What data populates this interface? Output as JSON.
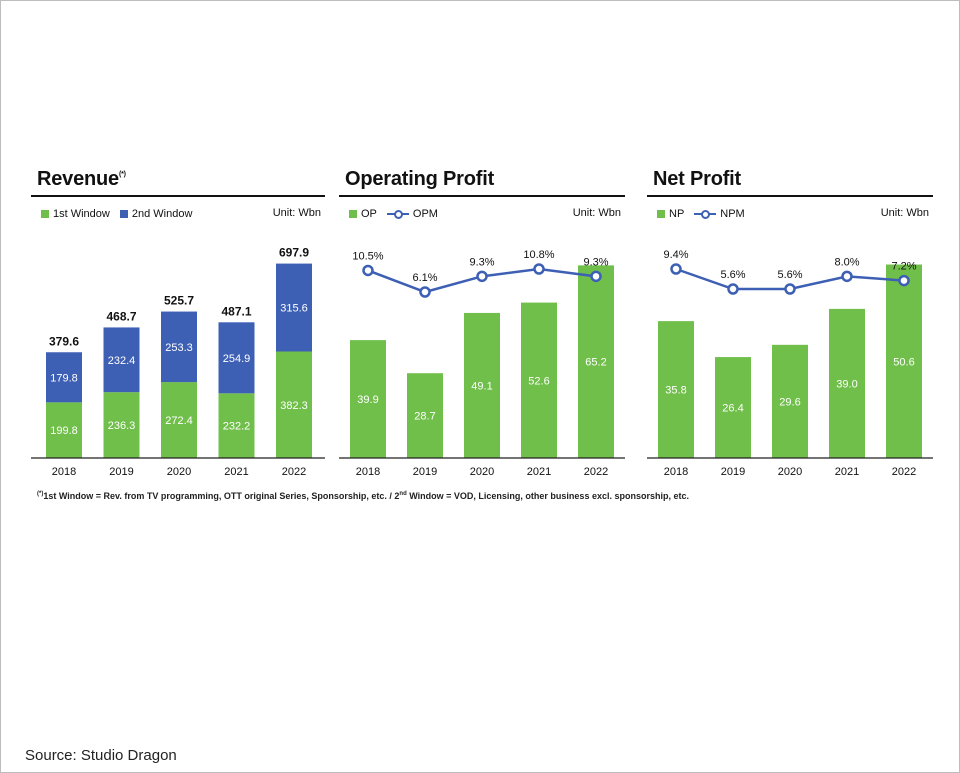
{
  "colors": {
    "green": "#71bf4b",
    "blue": "#3d5fb4",
    "axis": "#222222"
  },
  "footnote": {
    "mark": "(*)",
    "part1": "1st Window = Rev. from TV programming, OTT original Series, Sponsorship, etc. /  2",
    "sup": "nd",
    "part2": " Window = VOD, Licensing, other business excl. sponsorship, etc."
  },
  "source": "Source: Studio Dragon",
  "chart_data": [
    {
      "type": "bar",
      "stacked": true,
      "title": "Revenue",
      "title_mark": "(*)",
      "unit": "Unit: Wbn",
      "categories": [
        "2018",
        "2019",
        "2020",
        "2021",
        "2022"
      ],
      "series": [
        {
          "name": "1st Window",
          "values": [
            199.8,
            236.3,
            272.4,
            232.2,
            382.3
          ]
        },
        {
          "name": "2nd Window",
          "values": [
            179.8,
            232.4,
            253.3,
            254.9,
            315.6
          ]
        }
      ],
      "totals": [
        379.6,
        468.7,
        525.7,
        487.1,
        697.9
      ],
      "ylim": [
        0,
        700
      ]
    },
    {
      "type": "bar+line",
      "title": "Operating Profit",
      "unit": "Unit: Wbn",
      "categories": [
        "2018",
        "2019",
        "2020",
        "2021",
        "2022"
      ],
      "bar_series": {
        "name": "OP",
        "values": [
          39.9,
          28.7,
          49.1,
          52.6,
          65.2
        ]
      },
      "line_series": {
        "name": "OPM",
        "values": [
          10.5,
          6.1,
          9.3,
          10.8,
          9.3
        ],
        "labels": [
          "10.5%",
          "6.1%",
          "9.3%",
          "10.8%",
          "9.3%"
        ]
      },
      "ylim": [
        0,
        66
      ]
    },
    {
      "type": "bar+line",
      "title": "Net Profit",
      "unit": "Unit: Wbn",
      "categories": [
        "2018",
        "2019",
        "2020",
        "2021",
        "2022"
      ],
      "bar_series": {
        "name": "NP",
        "values": [
          35.8,
          26.4,
          29.6,
          39.0,
          50.6
        ]
      },
      "line_series": {
        "name": "NPM",
        "values": [
          9.4,
          5.6,
          5.6,
          8.0,
          7.2
        ],
        "labels": [
          "9.4%",
          "5.6%",
          "5.6%",
          "8.0%",
          "7.2%"
        ]
      },
      "ylim": [
        0,
        51
      ]
    }
  ]
}
